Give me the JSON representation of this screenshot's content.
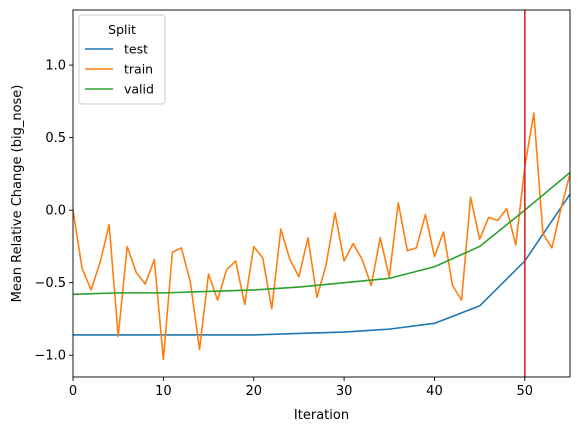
{
  "chart_data": {
    "type": "line",
    "xlabel": "Iteration",
    "ylabel": "Mean Relative Change (big_nose)",
    "xlim": [
      0,
      55
    ],
    "ylim": [
      -1.15,
      1.38
    ],
    "xticks": [
      0,
      10,
      20,
      30,
      40,
      50
    ],
    "xtick_labels": [
      "0",
      "10",
      "20",
      "30",
      "40",
      "50"
    ],
    "yticks": [
      -1.0,
      -0.5,
      0.0,
      0.5,
      1.0
    ],
    "ytick_labels": [
      "−1.0",
      "−0.5",
      "0.0",
      "0.5",
      "1.0"
    ],
    "grid": false,
    "legend": {
      "title": "Split",
      "position": "top-left"
    },
    "vline": {
      "x": 50,
      "color": "#d62728"
    },
    "series": [
      {
        "name": "test",
        "color": "#1f77b4",
        "x": [
          0,
          5,
          10,
          15,
          20,
          25,
          30,
          35,
          40,
          45,
          50,
          55
        ],
        "y": [
          -0.86,
          -0.86,
          -0.86,
          -0.86,
          -0.86,
          -0.85,
          -0.84,
          -0.82,
          -0.78,
          -0.66,
          -0.35,
          0.11
        ]
      },
      {
        "name": "train",
        "color": "#ff7f0e",
        "x": [
          0,
          1,
          2,
          3,
          4,
          5,
          6,
          7,
          8,
          9,
          10,
          11,
          12,
          13,
          14,
          15,
          16,
          17,
          18,
          19,
          20,
          21,
          22,
          23,
          24,
          25,
          26,
          27,
          28,
          29,
          30,
          31,
          32,
          33,
          34,
          35,
          36,
          37,
          38,
          39,
          40,
          41,
          42,
          43,
          44,
          45,
          46,
          47,
          48,
          49,
          50,
          51,
          52,
          53,
          54,
          55
        ],
        "y": [
          0.0,
          -0.4,
          -0.55,
          -0.36,
          -0.1,
          -0.87,
          -0.25,
          -0.43,
          -0.51,
          -0.34,
          -1.03,
          -0.29,
          -0.26,
          -0.5,
          -0.96,
          -0.44,
          -0.62,
          -0.41,
          -0.35,
          -0.65,
          -0.25,
          -0.33,
          -0.68,
          -0.13,
          -0.34,
          -0.46,
          -0.19,
          -0.6,
          -0.38,
          -0.02,
          -0.35,
          -0.23,
          -0.34,
          -0.52,
          -0.19,
          -0.46,
          0.05,
          -0.28,
          -0.26,
          -0.03,
          -0.32,
          -0.15,
          -0.52,
          -0.62,
          0.09,
          -0.2,
          -0.05,
          -0.07,
          0.01,
          -0.24,
          0.3,
          0.67,
          -0.16,
          -0.26,
          0.01,
          0.25
        ]
      },
      {
        "name": "valid",
        "color": "#2ca02c",
        "x": [
          0,
          5,
          10,
          15,
          20,
          25,
          30,
          35,
          40,
          45,
          50,
          55
        ],
        "y": [
          -0.58,
          -0.57,
          -0.57,
          -0.56,
          -0.55,
          -0.53,
          -0.5,
          -0.47,
          -0.39,
          -0.25,
          0.0,
          0.26
        ]
      }
    ]
  }
}
